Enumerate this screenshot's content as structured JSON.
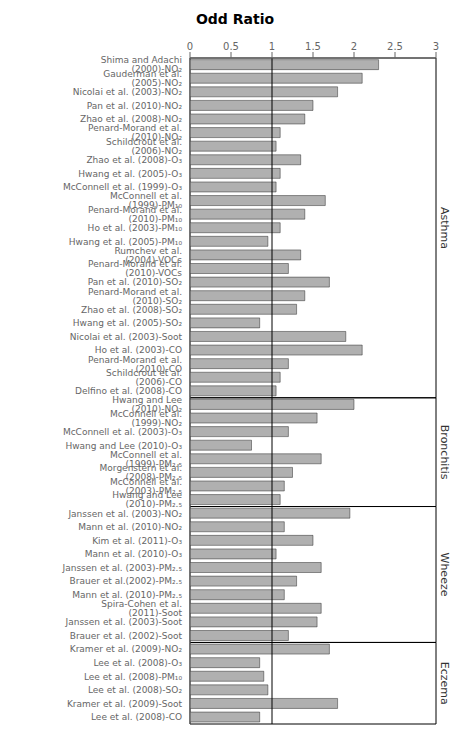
{
  "chart_data": {
    "type": "bar",
    "orientation": "horizontal",
    "title": "Odd Ratio",
    "color": "#b0b0b0",
    "xlim": [
      0,
      3
    ],
    "xticks": [
      0,
      0.5,
      1,
      1.5,
      2,
      2.5,
      3
    ],
    "vline_x": 1,
    "grid": false,
    "sections": [
      {
        "label": "Asthma",
        "categories": [
          "Shima and Adachi (2000)-NO₂",
          "Gauderman et al. (2005)-NO₂",
          "Nicolai et al. (2003)-NO₂",
          "Pan et al. (2010)-NO₂",
          "Zhao et al. (2008)-NO₂",
          "Penard-Morand et al. (2010)-NO₂",
          "Schildcrout et al. (2006)-NO₂",
          "Zhao et al. (2008)-O₃",
          "Hwang et al. (2005)-O₃",
          "McConnell et al. (1999)-O₃",
          "McConnell et al. (1999)-PM₁₀",
          "Penard-Morand et al. (2010)-PM₁₀",
          "Ho et al. (2003)-PM₁₀",
          "Hwang et al. (2005)-PM₁₀",
          "Rumchev et al. (2004)-VOCs",
          "Penard-Morand et al. (2010)-VOCs",
          "Pan et al. (2010)-SO₂",
          "Penard-Morand et al. (2010)-SO₂",
          "Zhao et al. (2008)-SO₂",
          "Hwang et al. (2005)-SO₂",
          "Nicolai et al. (2003)-Soot",
          "Ho et al. (2003)-CO",
          "Penard-Morand et al. (2010)-CO",
          "Schildcrout et al. (2006)-CO",
          "Delfino et al. (2008)-CO"
        ],
        "values": [
          2.3,
          2.1,
          1.8,
          1.5,
          1.4,
          1.1,
          1.05,
          1.35,
          1.1,
          1.05,
          1.65,
          1.4,
          1.1,
          0.95,
          1.35,
          1.2,
          1.7,
          1.4,
          1.3,
          0.85,
          1.9,
          2.1,
          1.2,
          1.1,
          1.05
        ]
      },
      {
        "label": "Bronchitis",
        "categories": [
          "Hwang and Lee (2010)-NO₂",
          "McConnell et al. (1999)-NO₂",
          "McConnell et al. (2003)-O₃",
          "Hwang and Lee (2010)-O₃",
          "McConnell et al. (1999)-PM₂.₅",
          "Morgenstern et al. (2008)-PM₂.₅",
          "McConnell et al. (2003)-PM₂.₅",
          "Hwang and Lee (2010)-PM₂.₅"
        ],
        "values": [
          2.0,
          1.55,
          1.2,
          0.75,
          1.6,
          1.25,
          1.15,
          1.1
        ]
      },
      {
        "label": "Wheeze",
        "categories": [
          "Janssen et al. (2003)-NO₂",
          "Mann et al. (2010)-NO₂",
          "Kim et al. (2011)-O₃",
          "Mann et al. (2010)-O₃",
          "Janssen et al. (2003)-PM₂.₅",
          "Brauer et al.(2002)-PM₂.₅",
          "Mann et al. (2010)-PM₂.₅",
          "Spira-Cohen et al. (2011)-Soot",
          "Janssen et al. (2003)-Soot",
          "Brauer et al. (2002)-Soot"
        ],
        "values": [
          1.95,
          1.15,
          1.5,
          1.05,
          1.6,
          1.3,
          1.15,
          1.6,
          1.55,
          1.2
        ]
      },
      {
        "label": "Eczema",
        "categories": [
          "Kramer et al. (2009)-NO₂",
          "Lee et al. (2008)-O₃",
          "Lee et al. (2008)-PM₁₀",
          "Lee et al. (2008)-SO₂",
          "Kramer et al. (2009)-Soot",
          "Lee et al. (2008)-CO"
        ],
        "values": [
          1.7,
          0.85,
          0.9,
          0.95,
          1.8,
          0.85
        ]
      }
    ]
  }
}
